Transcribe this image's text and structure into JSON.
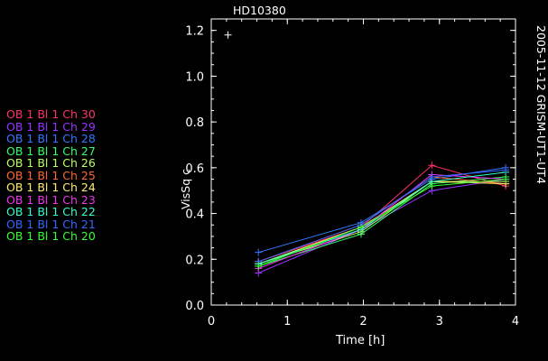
{
  "chart_data": {
    "type": "line",
    "title": "HD10380",
    "side_label": "2005-11-12 GRISM-UT1-UT4",
    "xlabel": "Time [h]",
    "ylabel": "VisSq c",
    "xlim": [
      0,
      4
    ],
    "ylim": [
      0,
      1.25
    ],
    "x_ticks": [
      "0",
      "1",
      "2",
      "3",
      "4"
    ],
    "y_ticks": [
      "0.0",
      "0.2",
      "0.4",
      "0.6",
      "0.8",
      "1.0",
      "1.2"
    ],
    "grid": false,
    "legend_position": "left",
    "outlier": {
      "x": 0.22,
      "y": 1.18
    },
    "x": [
      0.62,
      1.97,
      2.9,
      3.87
    ],
    "series": [
      {
        "name": "OB 1 Bl 1 Ch 30",
        "color": "#ff3366",
        "values": [
          0.19,
          0.34,
          0.61,
          0.52
        ]
      },
      {
        "name": "OB 1 Bl 1 Ch 29",
        "color": "#9933ff",
        "values": [
          0.14,
          0.33,
          0.5,
          0.55
        ]
      },
      {
        "name": "OB 1 Bl 1 Ch 28",
        "color": "#3377ff",
        "values": [
          0.23,
          0.36,
          0.55,
          0.6
        ]
      },
      {
        "name": "OB 1 Bl 1 Ch 27",
        "color": "#33ff66",
        "values": [
          0.17,
          0.31,
          0.53,
          0.56
        ]
      },
      {
        "name": "OB 1 Bl 1 Ch 26",
        "color": "#bbff66",
        "values": [
          0.18,
          0.32,
          0.54,
          0.54
        ]
      },
      {
        "name": "OB 1 Bl 1 Ch 25",
        "color": "#ff6633",
        "values": [
          0.19,
          0.35,
          0.56,
          0.53
        ]
      },
      {
        "name": "OB 1 Bl 1 Ch 24",
        "color": "#ffee66",
        "values": [
          0.18,
          0.34,
          0.54,
          0.53
        ]
      },
      {
        "name": "OB 1 Bl 1 Ch 23",
        "color": "#ee33ee",
        "values": [
          0.16,
          0.33,
          0.57,
          0.55
        ]
      },
      {
        "name": "OB 1 Bl 1 Ch 22",
        "color": "#33ffcc",
        "values": [
          0.18,
          0.33,
          0.54,
          0.58
        ]
      },
      {
        "name": "OB 1 Bl 1 Ch 21",
        "color": "#3366ff",
        "values": [
          0.19,
          0.35,
          0.56,
          0.59
        ]
      },
      {
        "name": "OB 1 Bl 1 Ch 20",
        "color": "#33ff33",
        "values": [
          0.17,
          0.34,
          0.52,
          0.55
        ]
      }
    ]
  }
}
